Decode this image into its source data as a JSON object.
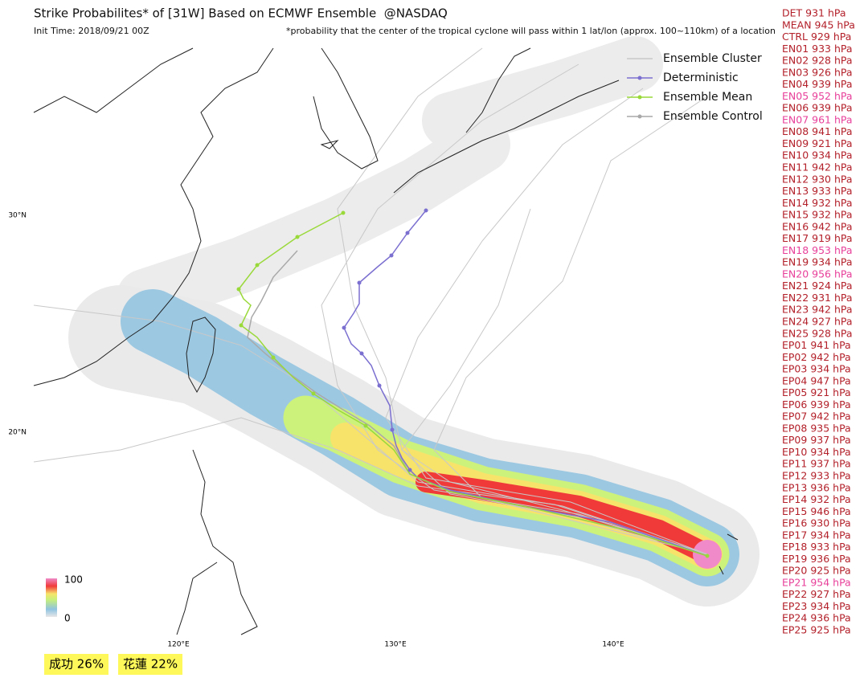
{
  "header": {
    "title": "Strike Probabilites* of [31W] Based on ECMWF Ensemble  @NASDAQ",
    "init_time": "Init Time: 2018/09/21 00Z",
    "note": "*probability that the center of the tropical cyclone will pass within 1 lat/lon (approx. 100~110km) of a location"
  },
  "legend": [
    {
      "label": "Ensemble Cluster",
      "color": "#c8c8c8"
    },
    {
      "label": "Deterministic",
      "color": "#7b6fd0"
    },
    {
      "label": "Ensemble Mean",
      "color": "#9ad93a"
    },
    {
      "label": "Ensemble Control",
      "color": "#a9a9a9"
    }
  ],
  "colorbar": {
    "max": "100",
    "min": "0"
  },
  "lat_labels": [
    "30°N",
    "20°N"
  ],
  "lon_labels": [
    "120°E",
    "130°E",
    "140°E"
  ],
  "stations": [
    "成功 26%",
    "花蓮 22%"
  ],
  "members": [
    {
      "label": "DET 931 hPa",
      "color": "#b3202a"
    },
    {
      "label": "MEAN 945 hPa",
      "color": "#b3202a"
    },
    {
      "label": "CTRL 929 hPa",
      "color": "#b3202a"
    },
    {
      "label": "EN01 933 hPa",
      "color": "#b3202a"
    },
    {
      "label": "EN02 928 hPa",
      "color": "#b3202a"
    },
    {
      "label": "EN03 926 hPa",
      "color": "#b3202a"
    },
    {
      "label": "EN04 939 hPa",
      "color": "#b3202a"
    },
    {
      "label": "EN05 952 hPa",
      "color": "#e8409a"
    },
    {
      "label": "EN06 939 hPa",
      "color": "#b3202a"
    },
    {
      "label": "EN07 961 hPa",
      "color": "#e8409a"
    },
    {
      "label": "EN08 941 hPa",
      "color": "#b3202a"
    },
    {
      "label": "EN09 921 hPa",
      "color": "#b3202a"
    },
    {
      "label": "EN10 934 hPa",
      "color": "#b3202a"
    },
    {
      "label": "EN11 942 hPa",
      "color": "#b3202a"
    },
    {
      "label": "EN12 930 hPa",
      "color": "#b3202a"
    },
    {
      "label": "EN13 933 hPa",
      "color": "#b3202a"
    },
    {
      "label": "EN14 932 hPa",
      "color": "#b3202a"
    },
    {
      "label": "EN15 932 hPa",
      "color": "#b3202a"
    },
    {
      "label": "EN16 942 hPa",
      "color": "#b3202a"
    },
    {
      "label": "EN17 919 hPa",
      "color": "#b3202a"
    },
    {
      "label": "EN18 953 hPa",
      "color": "#e8409a"
    },
    {
      "label": "EN19 934 hPa",
      "color": "#b3202a"
    },
    {
      "label": "EN20 956 hPa",
      "color": "#e8409a"
    },
    {
      "label": "EN21 924 hPa",
      "color": "#b3202a"
    },
    {
      "label": "EN22 931 hPa",
      "color": "#b3202a"
    },
    {
      "label": "EN23 942 hPa",
      "color": "#b3202a"
    },
    {
      "label": "EN24 927 hPa",
      "color": "#b3202a"
    },
    {
      "label": "EN25 928 hPa",
      "color": "#b3202a"
    },
    {
      "label": "EP01 941 hPa",
      "color": "#b3202a"
    },
    {
      "label": "EP02 942 hPa",
      "color": "#b3202a"
    },
    {
      "label": "EP03 934 hPa",
      "color": "#b3202a"
    },
    {
      "label": "EP04 947 hPa",
      "color": "#b3202a"
    },
    {
      "label": "EP05 921 hPa",
      "color": "#b3202a"
    },
    {
      "label": "EP06 939 hPa",
      "color": "#b3202a"
    },
    {
      "label": "EP07 942 hPa",
      "color": "#b3202a"
    },
    {
      "label": "EP08 935 hPa",
      "color": "#b3202a"
    },
    {
      "label": "EP09 937 hPa",
      "color": "#b3202a"
    },
    {
      "label": "EP10 934 hPa",
      "color": "#b3202a"
    },
    {
      "label": "EP11 937 hPa",
      "color": "#b3202a"
    },
    {
      "label": "EP12 933 hPa",
      "color": "#b3202a"
    },
    {
      "label": "EP13 936 hPa",
      "color": "#b3202a"
    },
    {
      "label": "EP14 932 hPa",
      "color": "#b3202a"
    },
    {
      "label": "EP15 946 hPa",
      "color": "#b3202a"
    },
    {
      "label": "EP16 930 hPa",
      "color": "#b3202a"
    },
    {
      "label": "EP17 934 hPa",
      "color": "#b3202a"
    },
    {
      "label": "EP18 933 hPa",
      "color": "#b3202a"
    },
    {
      "label": "EP19 936 hPa",
      "color": "#b3202a"
    },
    {
      "label": "EP20 925 hPa",
      "color": "#b3202a"
    },
    {
      "label": "EP21 954 hPa",
      "color": "#e8409a"
    },
    {
      "label": "EP22 927 hPa",
      "color": "#b3202a"
    },
    {
      "label": "EP23 934 hPa",
      "color": "#b3202a"
    },
    {
      "label": "EP24 936 hPa",
      "color": "#b3202a"
    },
    {
      "label": "EP25 925 hPa",
      "color": "#b3202a"
    }
  ]
}
